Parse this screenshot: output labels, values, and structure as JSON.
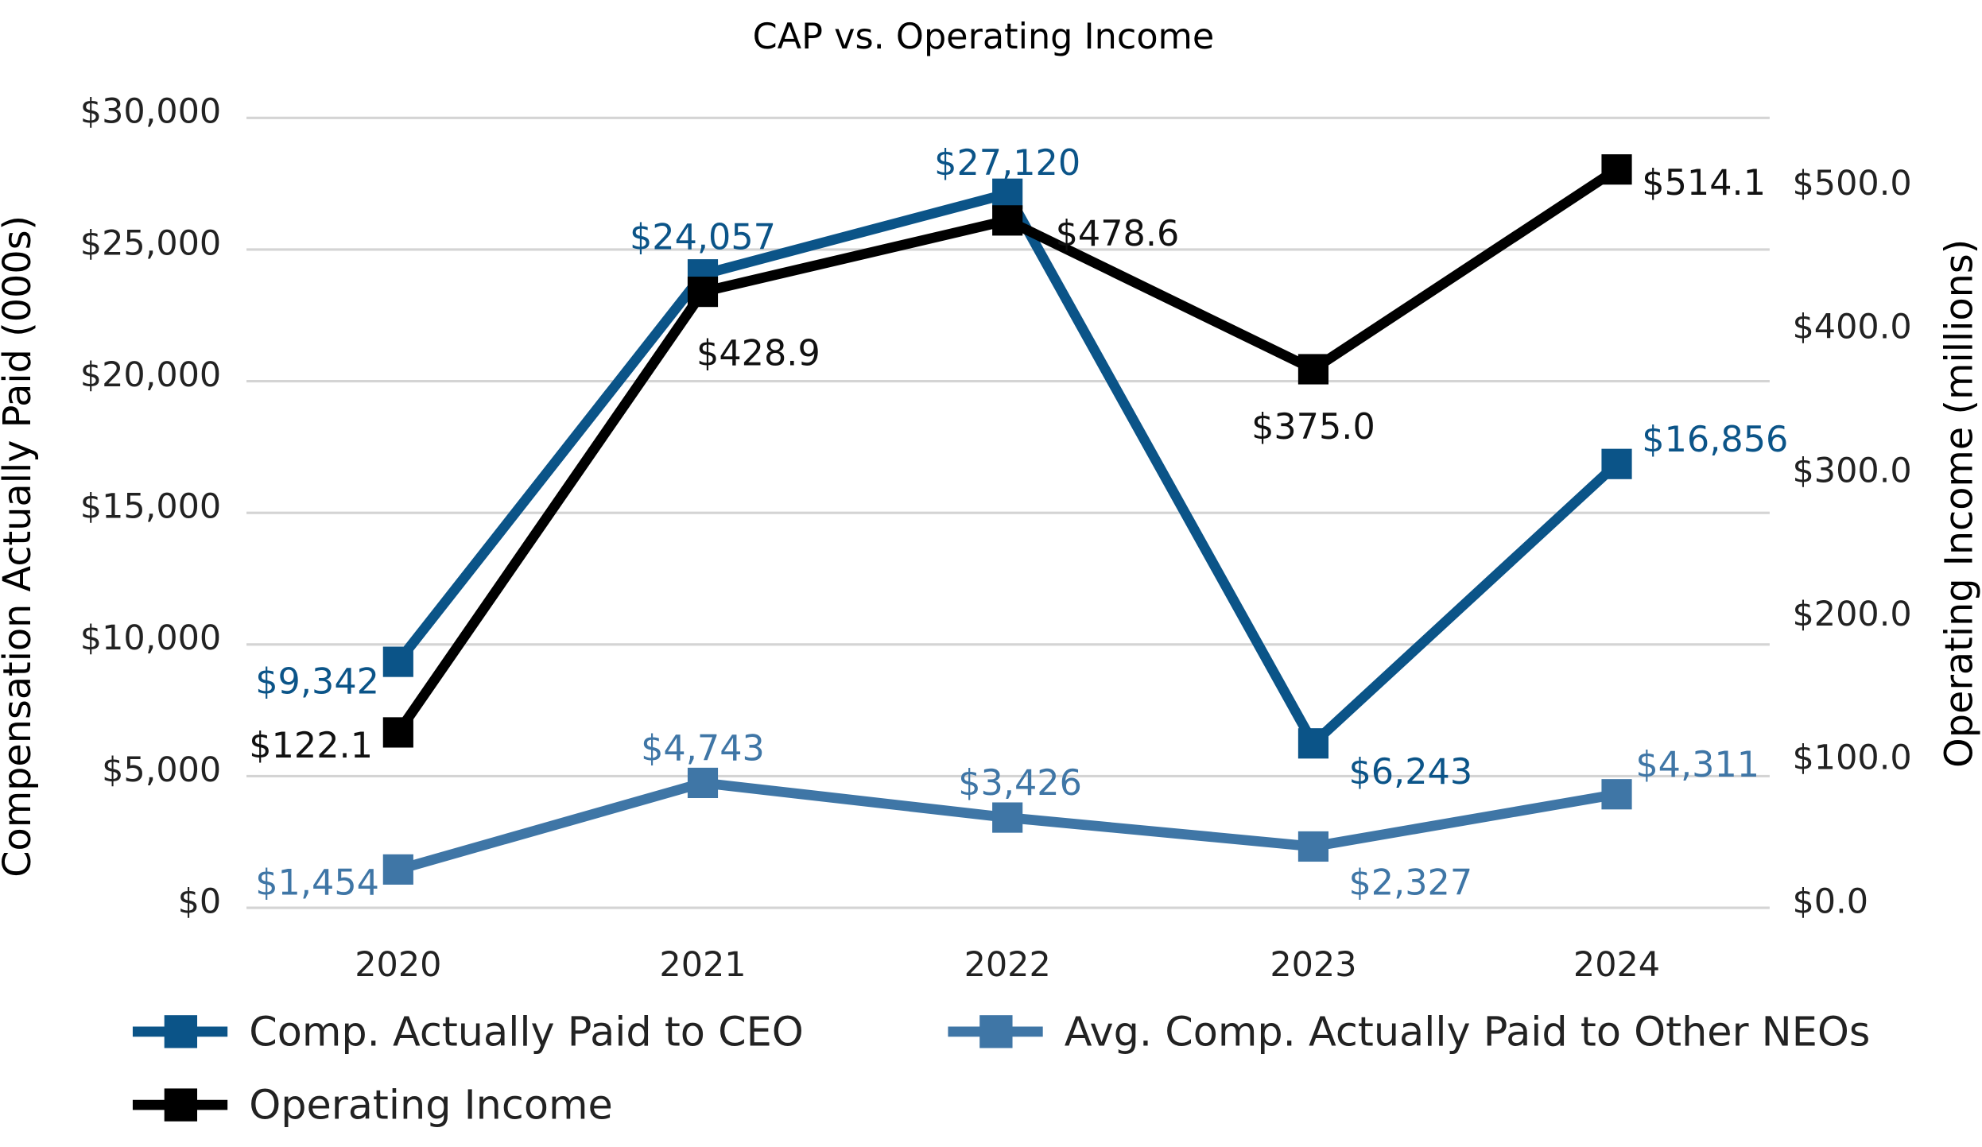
{
  "chart_data": {
    "type": "line",
    "title": "CAP vs. Operating Income",
    "categories": [
      "2020",
      "2021",
      "2022",
      "2023",
      "2024"
    ],
    "ylabel": "Compensation Actually Paid (000s)",
    "y2label": "Operating Income (millions)",
    "ylim": [
      0,
      30000
    ],
    "y2lim": [
      0,
      550
    ],
    "yticks": [
      "$0",
      "$5,000",
      "$10,000",
      "$15,000",
      "$20,000",
      "$25,000",
      "$30,000"
    ],
    "y2ticks": [
      "$0.0",
      "$100.0",
      "$200.0",
      "$300.0",
      "$400.0",
      "$500.0"
    ],
    "grid": true,
    "legend_position": "bottom",
    "series": [
      {
        "name": "Comp. Actually Paid to CEO",
        "axis": "left",
        "color": "#0b5488",
        "values": [
          9342,
          24057,
          27120,
          6243,
          16856
        ],
        "labels": [
          "$9,342",
          "$24,057",
          "$27,120",
          "$6,243",
          "$16,856"
        ]
      },
      {
        "name": "Avg. Comp. Actually Paid to Other NEOs",
        "axis": "left",
        "color": "#3f76a6",
        "values": [
          1454,
          4743,
          3426,
          2327,
          4311
        ],
        "labels": [
          "$1,454",
          "$4,743",
          "$3,426",
          "$2,327",
          "$4,311"
        ]
      },
      {
        "name": "Operating Income",
        "axis": "right",
        "color": "#000000",
        "values": [
          122.1,
          428.9,
          478.6,
          375.0,
          514.1
        ],
        "labels": [
          "$122.1",
          "$428.9",
          "$478.6",
          "$375.0",
          "$514.1"
        ]
      }
    ]
  }
}
